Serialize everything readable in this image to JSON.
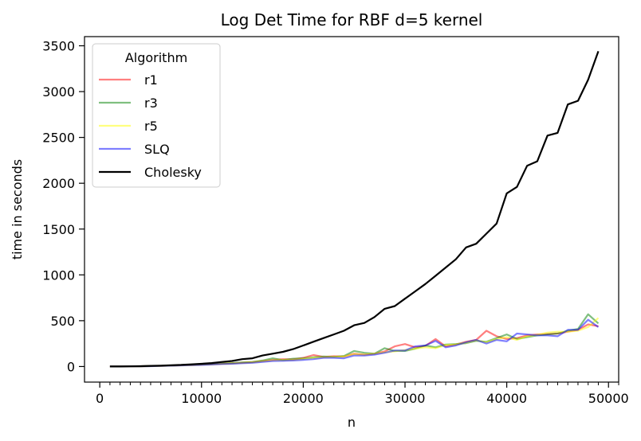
{
  "chart_data": {
    "type": "line",
    "title": "Log Det Time for RBF d=5 kernel",
    "xlabel": "n",
    "ylabel": "time in seconds",
    "xlim": [
      -1500,
      51000
    ],
    "ylim": [
      -170,
      3600
    ],
    "xticks": [
      0,
      10000,
      20000,
      30000,
      40000,
      50000
    ],
    "xtick_labels": [
      "0",
      "10000",
      "20000",
      "30000",
      "40000",
      "50000"
    ],
    "xminor_step": 1000,
    "yticks": [
      0,
      500,
      1000,
      1500,
      2000,
      2500,
      3000,
      3500
    ],
    "ytick_labels": [
      "0",
      "500",
      "1000",
      "1500",
      "2000",
      "2500",
      "3000",
      "3500"
    ],
    "grid": false,
    "legend": {
      "title": "Algorithm",
      "placement": "top-left"
    },
    "x": [
      1000,
      2000,
      3000,
      4000,
      5000,
      6000,
      7000,
      8000,
      9000,
      10000,
      11000,
      12000,
      13000,
      14000,
      15000,
      16000,
      17000,
      18000,
      19000,
      20000,
      21000,
      22000,
      23000,
      24000,
      25000,
      26000,
      27000,
      28000,
      29000,
      30000,
      31000,
      32000,
      33000,
      34000,
      35000,
      36000,
      37000,
      38000,
      39000,
      40000,
      41000,
      42000,
      43000,
      44000,
      45000,
      46000,
      47000,
      48000,
      49000
    ],
    "series": [
      {
        "name": "r1",
        "color": "#ff0000",
        "opacity": 0.5,
        "values": [
          0,
          1,
          2,
          3,
          5,
          7,
          10,
          13,
          16,
          20,
          25,
          30,
          35,
          42,
          48,
          60,
          72,
          80,
          78,
          95,
          125,
          105,
          112,
          110,
          140,
          130,
          140,
          165,
          220,
          245,
          210,
          225,
          300,
          220,
          240,
          270,
          290,
          390,
          330,
          300,
          310,
          340,
          350,
          355,
          360,
          380,
          400,
          460,
          440
        ]
      },
      {
        "name": "r3",
        "color": "#008000",
        "opacity": 0.5,
        "values": [
          0,
          1,
          2,
          3,
          5,
          7,
          10,
          14,
          17,
          22,
          26,
          33,
          38,
          45,
          50,
          65,
          90,
          70,
          85,
          90,
          100,
          110,
          105,
          115,
          170,
          150,
          140,
          200,
          170,
          170,
          195,
          230,
          210,
          240,
          245,
          255,
          280,
          270,
          310,
          350,
          300,
          320,
          340,
          350,
          360,
          390,
          410,
          570,
          470
        ]
      },
      {
        "name": "r5",
        "color": "#ffff00",
        "opacity": 0.5,
        "values": [
          0,
          1,
          2,
          3,
          5,
          7,
          9,
          13,
          16,
          20,
          24,
          30,
          34,
          40,
          46,
          58,
          68,
          70,
          72,
          82,
          95,
          100,
          105,
          110,
          135,
          130,
          140,
          155,
          165,
          180,
          195,
          210,
          200,
          235,
          240,
          260,
          285,
          265,
          300,
          320,
          290,
          330,
          345,
          370,
          380,
          380,
          390,
          430,
          530
        ]
      },
      {
        "name": "SLQ",
        "color": "#0000ff",
        "opacity": 0.5,
        "values": [
          0,
          1,
          2,
          3,
          4,
          6,
          9,
          12,
          15,
          18,
          22,
          27,
          30,
          36,
          40,
          50,
          60,
          62,
          65,
          72,
          80,
          95,
          95,
          90,
          120,
          120,
          130,
          150,
          175,
          175,
          220,
          230,
          280,
          210,
          230,
          265,
          290,
          250,
          290,
          275,
          360,
          350,
          340,
          340,
          330,
          400,
          400,
          510,
          430
        ]
      },
      {
        "name": "Cholesky",
        "color": "#000000",
        "opacity": 1,
        "values": [
          0,
          0,
          2,
          4,
          7,
          10,
          14,
          18,
          24,
          30,
          38,
          50,
          60,
          80,
          90,
          120,
          140,
          160,
          190,
          230,
          270,
          310,
          350,
          390,
          450,
          475,
          540,
          630,
          660,
          740,
          820,
          900,
          990,
          1080,
          1170,
          1300,
          1340,
          1450,
          1560,
          1890,
          1960,
          2190,
          2240,
          2520,
          2550,
          2860,
          2900,
          3130,
          3440
        ]
      }
    ]
  }
}
